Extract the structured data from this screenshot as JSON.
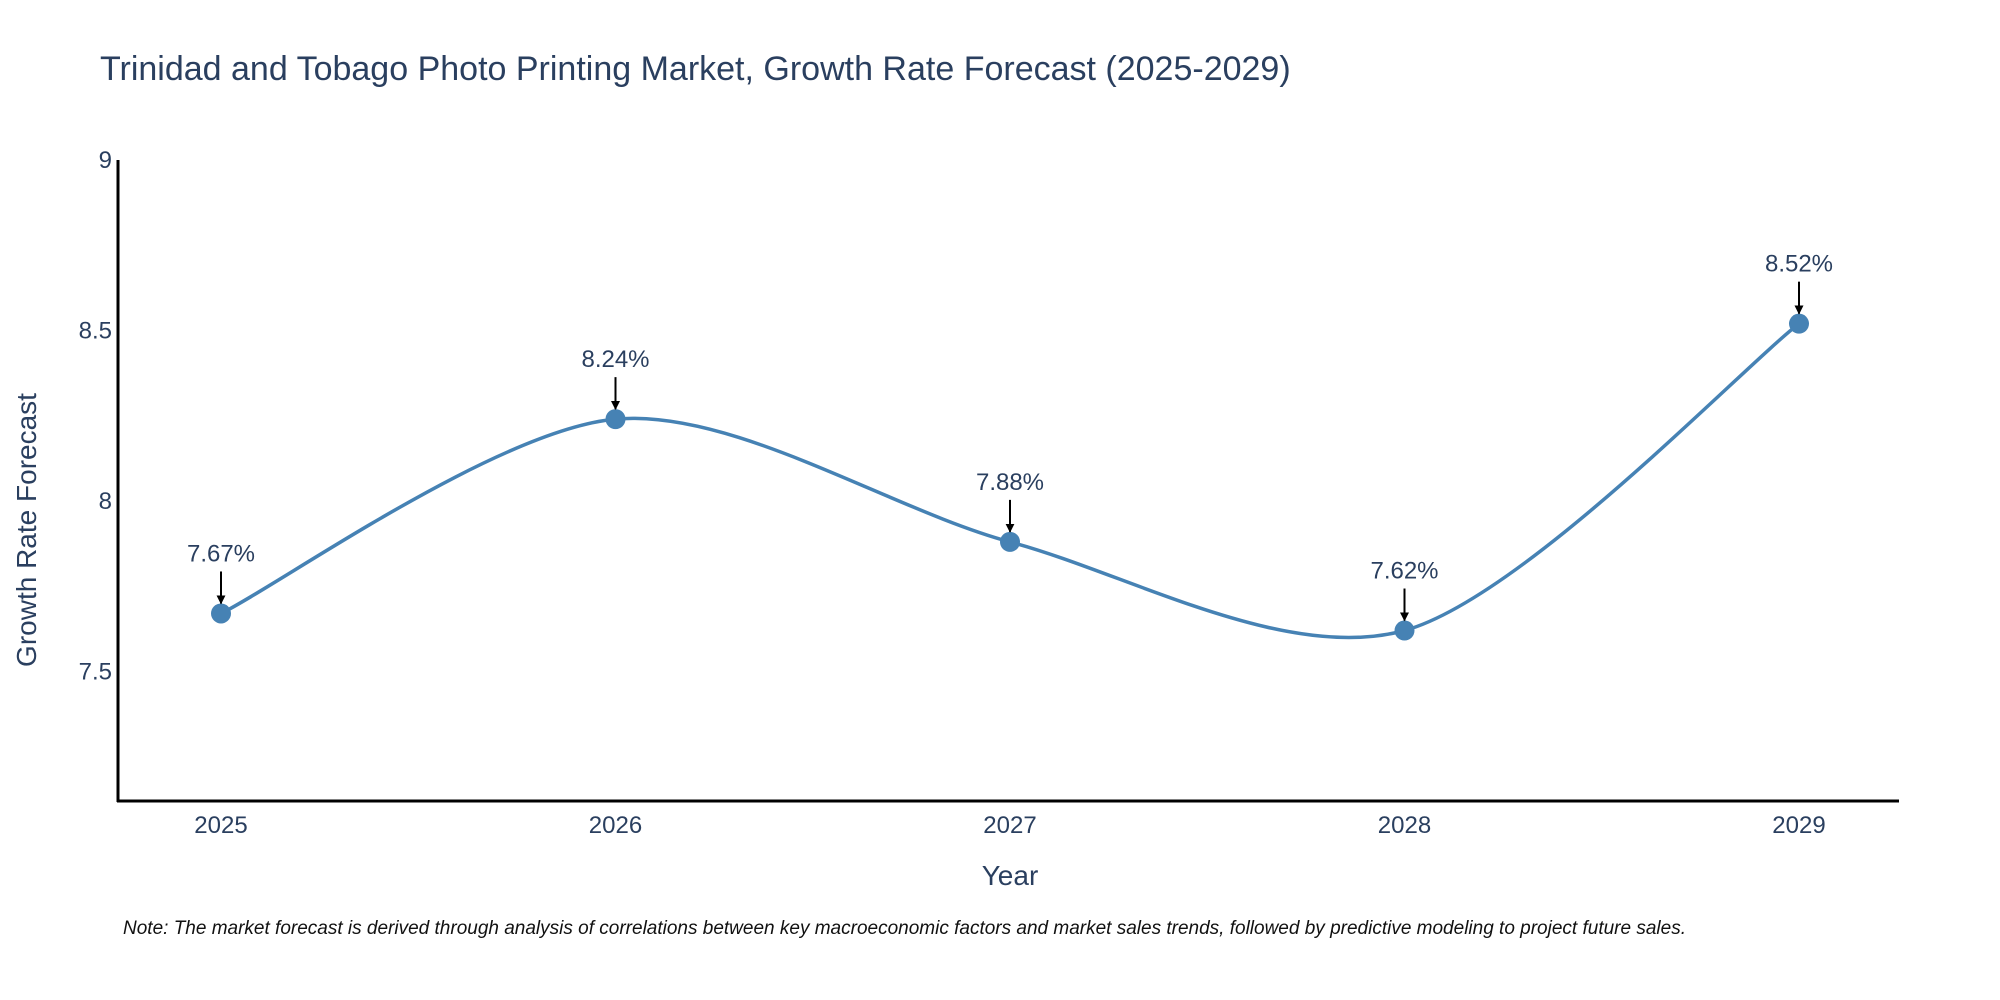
{
  "chart_data": {
    "type": "line",
    "title": "Trinidad and Tobago Photo Printing Market, Growth Rate Forecast (2025-2029)",
    "xlabel": "Year",
    "ylabel": "Growth Rate Forecast",
    "categories": [
      "2025",
      "2026",
      "2027",
      "2028",
      "2029"
    ],
    "values": [
      7.67,
      8.24,
      7.88,
      7.62,
      8.52
    ],
    "labels": [
      "7.67%",
      "8.24%",
      "7.88%",
      "7.62%",
      "8.52%"
    ],
    "ylim": [
      7.12,
      9.0
    ],
    "yticks": [
      7.5,
      8,
      8.5,
      9
    ],
    "ytick_labels": [
      "7.5",
      "8",
      "8.5",
      "9"
    ],
    "line_shape": "spline",
    "series_color": "#4682b4",
    "grid": false
  },
  "note": "Note: The market forecast is derived through analysis of correlations between key macroeconomic factors and market sales trends, followed by predictive modeling to project future sales."
}
